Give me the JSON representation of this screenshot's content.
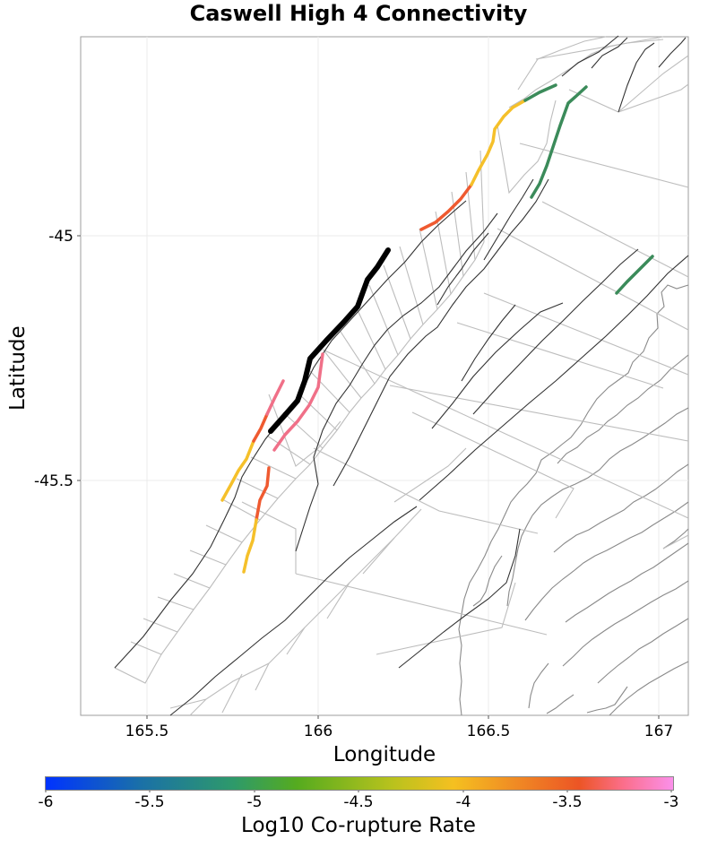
{
  "title": "Caswell High 4 Connectivity",
  "xaxis": {
    "label": "Longitude",
    "ticks": [
      "165.5",
      "166",
      "166.5",
      "167"
    ]
  },
  "yaxis": {
    "label": "Latitude",
    "ticks": [
      "-45",
      "-45.5"
    ]
  },
  "colorbar": {
    "label": "Log10 Co-rupture Rate",
    "ticks": [
      "-6",
      "-5.5",
      "-5",
      "-4.5",
      "-4",
      "-3.5",
      "-3"
    ],
    "range": [
      -6,
      -3
    ]
  },
  "colors": {
    "selected_fault": "#000000",
    "high_rate": "#f07088",
    "mid_high_rate": "#ef5a30",
    "mid_rate": "#f5c02a",
    "low_rate": "#3b8b5a",
    "fault_trace": "#333333",
    "section_outline": "#bdbdbd",
    "coastline": "#8a8a8a"
  },
  "map_extent": {
    "lon": [
      165.3,
      167.08
    ],
    "lat": [
      -45.97,
      -44.6
    ]
  }
}
